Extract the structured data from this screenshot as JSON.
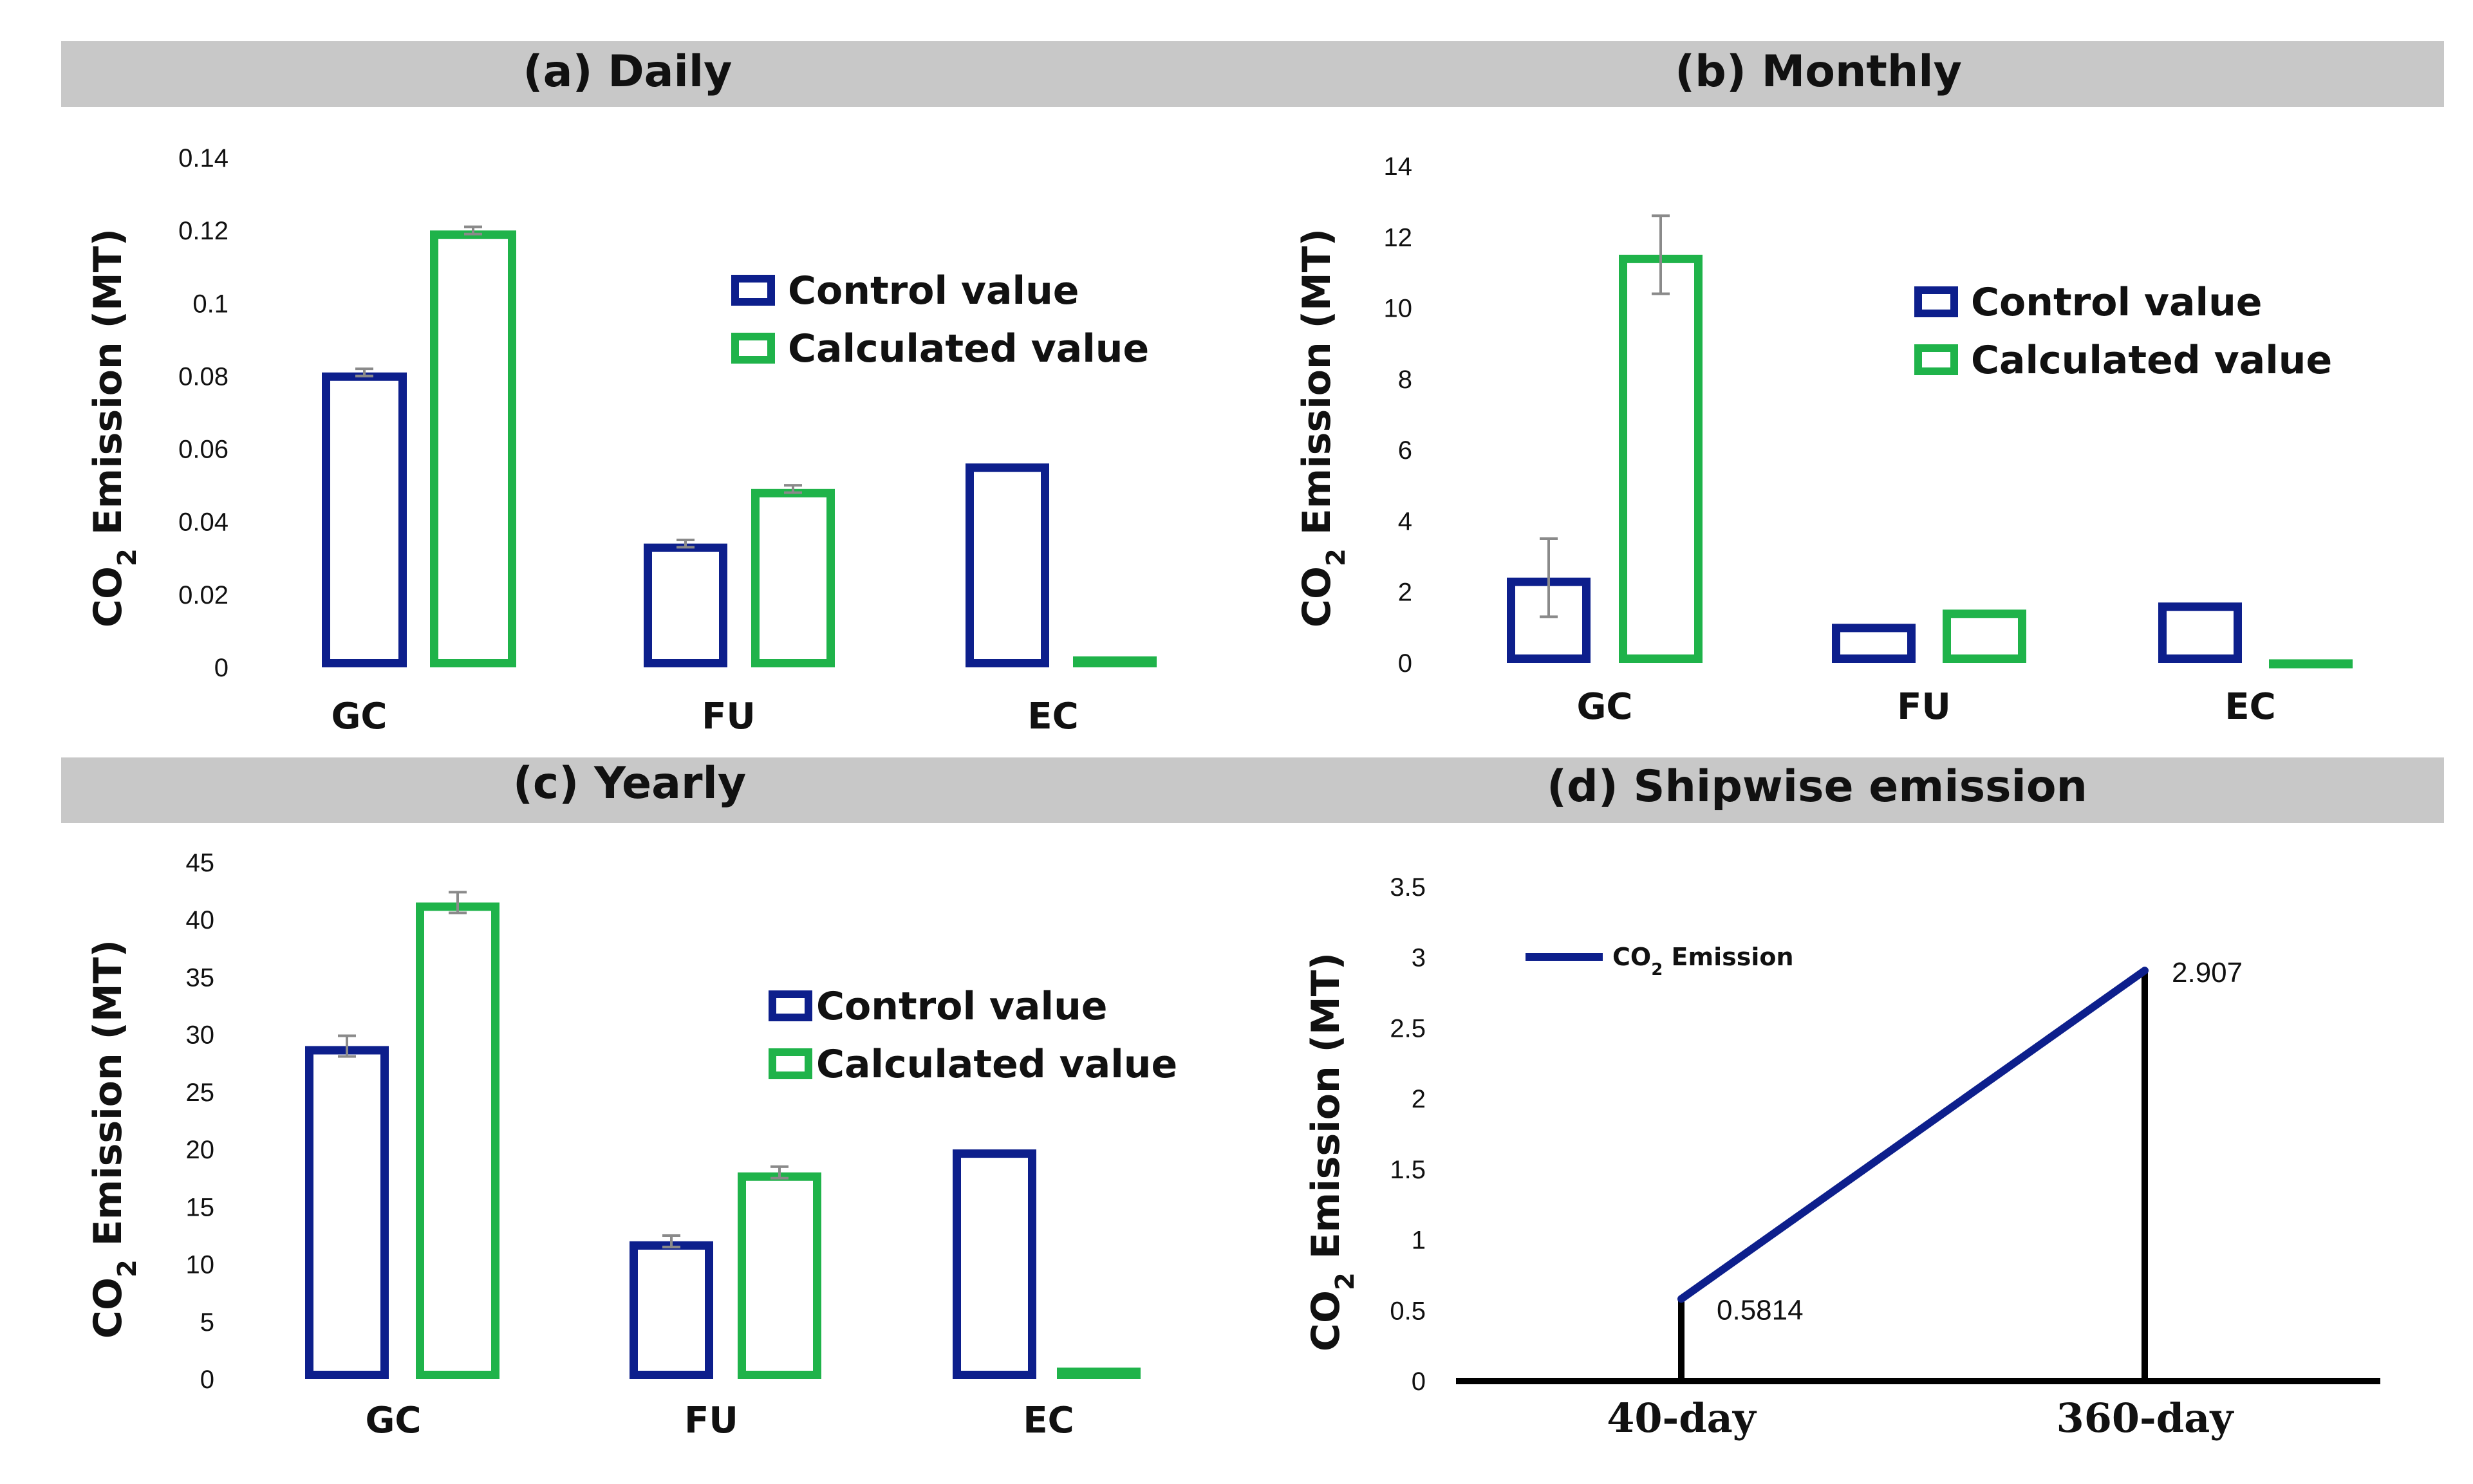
{
  "colors": {
    "control": "#0d1f8c",
    "calculated": "#1fb34a",
    "line": "#0d1f8c",
    "header_bg": "#c8c8c8",
    "error": "#8a8a8a",
    "axis": "#000000"
  },
  "chart_data": [
    {
      "type": "bar",
      "title": "(a) Daily",
      "ylabel": "CO2 Emission (MT)",
      "ylabel_main": "CO",
      "ylabel_sub": "2",
      "ylabel_rest": " Emission (MT)",
      "categories": [
        "GC",
        "FU",
        "EC"
      ],
      "ylim": [
        0,
        0.14
      ],
      "yticks": [
        0,
        0.02,
        0.04,
        0.06,
        0.08,
        0.1,
        0.12,
        0.14
      ],
      "ytick_labels": [
        "0",
        "0.02",
        "0.04",
        "0.06",
        "0.08",
        "0.1",
        "0.12",
        "0.14"
      ],
      "legend": [
        "Control value",
        "Calculated value"
      ],
      "series": [
        {
          "name": "Control value",
          "values": [
            0.081,
            0.034,
            0.056
          ],
          "errors": [
            0.001,
            0.001,
            0
          ]
        },
        {
          "name": "Calculated value",
          "values": [
            0.12,
            0.049,
            0.003
          ],
          "errors": [
            0.001,
            0.001,
            0
          ]
        }
      ]
    },
    {
      "type": "bar",
      "title": "(b) Monthly",
      "ylabel": "CO2 Emission (MT)",
      "ylabel_main": "CO",
      "ylabel_sub": "2",
      "ylabel_rest": " Emission (MT)",
      "categories": [
        "GC",
        "FU",
        "EC"
      ],
      "ylim": [
        0,
        14
      ],
      "yticks": [
        0,
        2,
        4,
        6,
        8,
        10,
        12,
        14
      ],
      "ytick_labels": [
        "0",
        "2",
        "4",
        "6",
        "8",
        "10",
        "12",
        "14"
      ],
      "legend": [
        "Control value",
        "Calculated value"
      ],
      "series": [
        {
          "name": "Control value",
          "values": [
            2.4,
            1.1,
            1.7
          ],
          "errors": [
            1.1,
            0,
            0
          ]
        },
        {
          "name": "Calculated value",
          "values": [
            11.5,
            1.5,
            0.1
          ],
          "errors": [
            1.1,
            0,
            0
          ]
        }
      ]
    },
    {
      "type": "bar",
      "title": "(c) Yearly",
      "ylabel": "CO2 Emission (MT)",
      "ylabel_main": "CO",
      "ylabel_sub": "2",
      "ylabel_rest": " Emission (MT)",
      "categories": [
        "GC",
        "FU",
        "EC"
      ],
      "ylim": [
        0,
        45
      ],
      "yticks": [
        0,
        5,
        10,
        15,
        20,
        25,
        30,
        35,
        40,
        45
      ],
      "ytick_labels": [
        "0",
        "5",
        "10",
        "15",
        "20",
        "25",
        "30",
        "35",
        "40",
        "45"
      ],
      "legend": [
        "Control value",
        "Calculated value"
      ],
      "series": [
        {
          "name": "Control value",
          "values": [
            29,
            12,
            20
          ],
          "errors": [
            0.9,
            0.5,
            0
          ]
        },
        {
          "name": "Calculated value",
          "values": [
            41.5,
            18,
            1
          ],
          "errors": [
            0.9,
            0.5,
            0
          ]
        }
      ]
    },
    {
      "type": "line",
      "title": "(d) Shipwise emission",
      "ylabel": "CO2 Emission (MT)",
      "ylabel_main": "CO",
      "ylabel_sub": "2",
      "ylabel_rest": " Emission (MT)",
      "categories": [
        "40-day",
        "360-day"
      ],
      "ylim": [
        0,
        3.5
      ],
      "yticks": [
        0,
        0.5,
        1,
        1.5,
        2,
        2.5,
        3,
        3.5
      ],
      "ytick_labels": [
        "0",
        "0.5",
        "1",
        "1.5",
        "2",
        "2.5",
        "3",
        "3.5"
      ],
      "legend": [
        "CO2 Emission"
      ],
      "legend_main": "CO",
      "legend_sub": "2",
      "legend_rest": " Emission",
      "series": [
        {
          "name": "CO2 Emission",
          "values": [
            0.5814,
            2.907
          ]
        }
      ],
      "data_labels": [
        "0.5814",
        "2.907"
      ]
    }
  ]
}
